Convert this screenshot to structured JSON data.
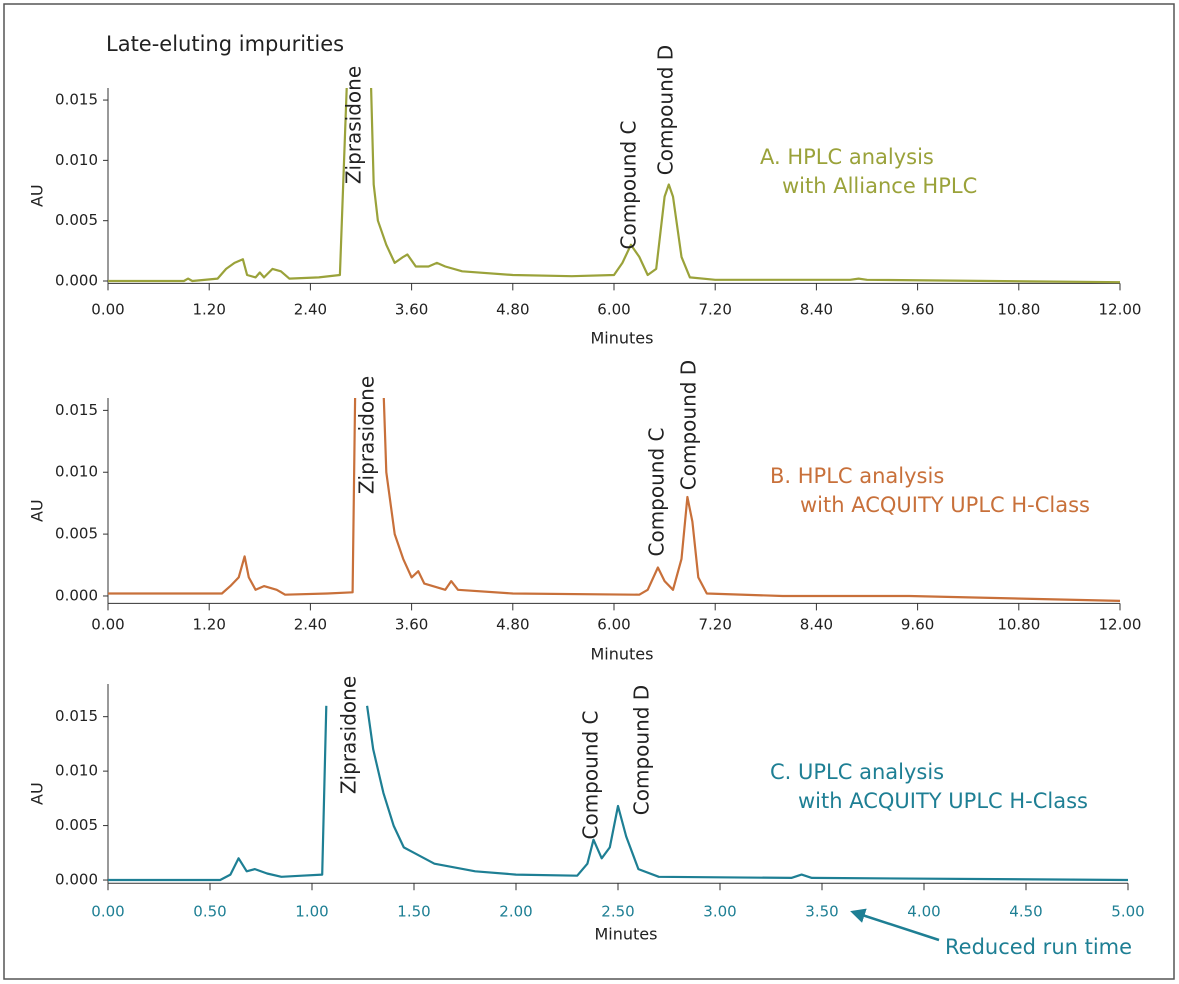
{
  "chart_data": [
    {
      "type": "line",
      "title": "Late-eluting impurities",
      "xlabel": "Minutes",
      "ylabel": "AU",
      "color": "#9aa23a",
      "panel_label": [
        "A. HPLC analysis",
        "with Alliance HPLC"
      ],
      "annotations": [
        "Ziprasidone",
        "Compound C",
        "Compound D"
      ],
      "x": [
        0,
        0.9,
        0.95,
        1.0,
        1.3,
        1.4,
        1.5,
        1.6,
        1.65,
        1.75,
        1.8,
        1.85,
        1.95,
        2.05,
        2.15,
        2.5,
        2.75,
        2.83,
        2.95,
        3.12,
        3.15,
        3.2,
        3.3,
        3.4,
        3.5,
        3.55,
        3.65,
        3.8,
        3.9,
        4.0,
        4.2,
        4.8,
        5.5,
        6.0,
        6.1,
        6.2,
        6.3,
        6.4,
        6.5,
        6.6,
        6.65,
        6.7,
        6.8,
        6.9,
        7.2,
        8.8,
        8.9,
        9.0,
        12.0
      ],
      "values": [
        0,
        0,
        0.0002,
        0,
        0.0002,
        0.001,
        0.0015,
        0.0018,
        0.0005,
        0.0003,
        0.0007,
        0.0003,
        0.001,
        0.0008,
        0.0002,
        0.0003,
        0.0005,
        0.016,
        null,
        0.016,
        0.008,
        0.005,
        0.003,
        0.0015,
        0.002,
        0.0022,
        0.0012,
        0.0012,
        0.0015,
        0.0012,
        0.0008,
        0.0005,
        0.0004,
        0.0005,
        0.0015,
        0.003,
        0.002,
        0.0005,
        0.001,
        0.007,
        0.008,
        0.007,
        0.002,
        0.0003,
        0.0001,
        0.0001,
        0.0002,
        0.0001,
        -0.0001
      ],
      "xlim": [
        0,
        12
      ],
      "ylim": [
        -0.0002,
        0.016
      ],
      "xticks": [
        {
          "value": 0,
          "label": "0.00"
        },
        {
          "value": 1.2,
          "label": "1.20"
        },
        {
          "value": 2.4,
          "label": "2.40"
        },
        {
          "value": 3.6,
          "label": "3.60"
        },
        {
          "value": 4.8,
          "label": "4.80"
        },
        {
          "value": 6,
          "label": "6.00"
        },
        {
          "value": 7.2,
          "label": "7.20"
        },
        {
          "value": 8.4,
          "label": "8.40"
        },
        {
          "value": 9.6,
          "label": "9.60"
        },
        {
          "value": 10.8,
          "label": "10.80"
        },
        {
          "value": 12,
          "label": "12.00"
        }
      ],
      "yticks": [
        {
          "value": 0,
          "label": "0.000"
        },
        {
          "value": 0.005,
          "label": "0.005"
        },
        {
          "value": 0.01,
          "label": "0.010"
        },
        {
          "value": 0.015,
          "label": "0.015"
        }
      ]
    },
    {
      "type": "line",
      "xlabel": "Minutes",
      "ylabel": "AU",
      "color": "#c8703a",
      "panel_label": [
        "B. HPLC analysis",
        "with ACQUITY UPLC H-Class"
      ],
      "annotations": [
        "Ziprasidone",
        "Compound C",
        "Compound D"
      ],
      "x": [
        0,
        1.35,
        1.45,
        1.55,
        1.62,
        1.67,
        1.75,
        1.85,
        2.0,
        2.1,
        2.6,
        2.9,
        2.93,
        3.1,
        3.27,
        3.3,
        3.4,
        3.5,
        3.6,
        3.68,
        3.75,
        4.0,
        4.07,
        4.15,
        4.8,
        6.3,
        6.4,
        6.52,
        6.6,
        6.7,
        6.8,
        6.87,
        6.93,
        7.0,
        7.1,
        8.0,
        9.5,
        12.0
      ],
      "values": [
        0.0002,
        0.0002,
        0.0008,
        0.0015,
        0.0032,
        0.0015,
        0.0005,
        0.0008,
        0.0005,
        0.0001,
        0.0002,
        0.0003,
        0.016,
        null,
        0.016,
        0.01,
        0.005,
        0.003,
        0.0015,
        0.002,
        0.001,
        0.0005,
        0.0012,
        0.0005,
        0.0002,
        0.0001,
        0.0005,
        0.0023,
        0.0012,
        0.0005,
        0.003,
        0.008,
        0.006,
        0.0015,
        0.0002,
        0,
        0,
        -0.0004
      ],
      "xlim": [
        0,
        12
      ],
      "ylim": [
        -0.0006,
        0.016
      ],
      "xticks": [
        {
          "value": 0,
          "label": "0.00"
        },
        {
          "value": 1.2,
          "label": "1.20"
        },
        {
          "value": 2.4,
          "label": "2.40"
        },
        {
          "value": 3.6,
          "label": "3.60"
        },
        {
          "value": 4.8,
          "label": "4.80"
        },
        {
          "value": 6,
          "label": "6.00"
        },
        {
          "value": 7.2,
          "label": "7.20"
        },
        {
          "value": 8.4,
          "label": "8.40"
        },
        {
          "value": 9.6,
          "label": "9.60"
        },
        {
          "value": 10.8,
          "label": "10.80"
        },
        {
          "value": 12,
          "label": "12.00"
        }
      ],
      "yticks": [
        {
          "value": 0,
          "label": "0.000"
        },
        {
          "value": 0.005,
          "label": "0.005"
        },
        {
          "value": 0.01,
          "label": "0.010"
        },
        {
          "value": 0.015,
          "label": "0.015"
        }
      ]
    },
    {
      "type": "line",
      "xlabel": "Minutes",
      "ylabel": "AU",
      "color": "#1e7f94",
      "panel_label": [
        "C. UPLC analysis",
        "with ACQUITY UPLC H-Class"
      ],
      "annotations": [
        "Ziprasidone",
        "Compound C",
        "Compound D"
      ],
      "note": "Reduced run time",
      "x": [
        0,
        0.55,
        0.6,
        0.64,
        0.68,
        0.72,
        0.78,
        0.85,
        0.95,
        1.05,
        1.07,
        1.17,
        1.27,
        1.3,
        1.35,
        1.4,
        1.45,
        1.5,
        1.6,
        1.8,
        2.0,
        2.3,
        2.35,
        2.38,
        2.42,
        2.46,
        2.5,
        2.54,
        2.6,
        2.7,
        3.35,
        3.4,
        3.45,
        5.0
      ],
      "values": [
        0,
        0,
        0.0005,
        0.002,
        0.0008,
        0.001,
        0.0006,
        0.0003,
        0.0004,
        0.0005,
        0.016,
        null,
        0.016,
        0.012,
        0.008,
        0.005,
        0.003,
        0.0025,
        0.0015,
        0.0008,
        0.0005,
        0.0004,
        0.0015,
        0.0037,
        0.002,
        0.003,
        0.0068,
        0.004,
        0.001,
        0.0003,
        0.0002,
        0.0005,
        0.0002,
        0
      ],
      "xlim": [
        0,
        5
      ],
      "ylim": [
        -0.0003,
        0.018
      ],
      "xticks": [
        {
          "value": 0,
          "label": "0.00"
        },
        {
          "value": 0.5,
          "label": "0.50"
        },
        {
          "value": 1,
          "label": "1.00"
        },
        {
          "value": 1.5,
          "label": "1.50"
        },
        {
          "value": 2,
          "label": "2.00"
        },
        {
          "value": 2.5,
          "label": "2.50"
        },
        {
          "value": 3,
          "label": "3.00"
        },
        {
          "value": 3.5,
          "label": "3.50"
        },
        {
          "value": 4,
          "label": "4.00"
        },
        {
          "value": 4.5,
          "label": "4.50"
        },
        {
          "value": 5,
          "label": "5.00"
        }
      ],
      "yticks": [
        {
          "value": 0,
          "label": "0.000"
        },
        {
          "value": 0.005,
          "label": "0.005"
        },
        {
          "value": 0.01,
          "label": "0.010"
        },
        {
          "value": 0.015,
          "label": "0.015"
        }
      ]
    }
  ]
}
